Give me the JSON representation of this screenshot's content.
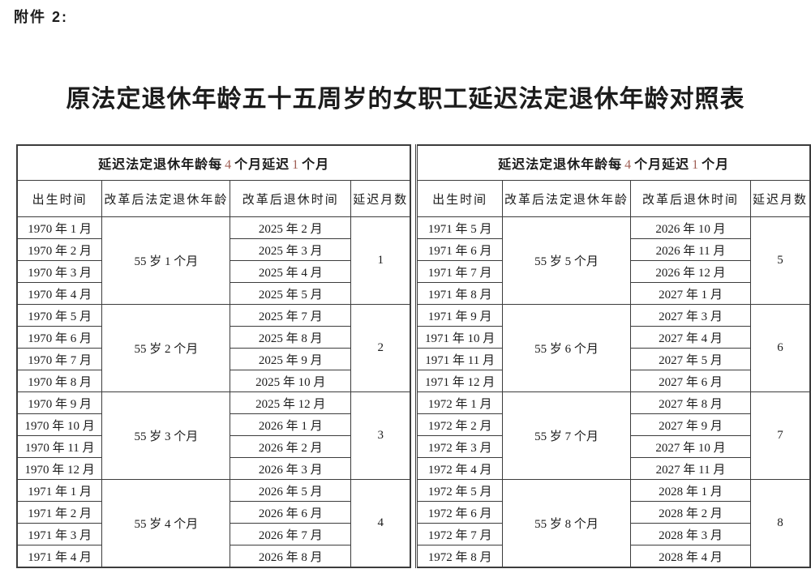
{
  "page": {
    "attachment_label": "附件 2:",
    "title": "原法定退休年龄五十五周岁的女职工延迟法定退休年龄对照表"
  },
  "colors": {
    "header_digit_color": "#a05f55",
    "border_color": "#3c3c3c",
    "text_color": "#1c1c1c",
    "background": "#ffffff"
  },
  "tables": [
    {
      "span_header": {
        "prefix": "延迟法定退休年龄每",
        "interval_months": "4",
        "mid": "个月延迟",
        "delay_months": "1",
        "suffix": "个月"
      },
      "columns": [
        "出生时间",
        "改革后法定退休年龄",
        "改革后退休时间",
        "延迟月数"
      ],
      "groups": [
        {
          "birth_months": [
            "1970 年 1 月",
            "1970 年 2 月",
            "1970 年 3 月",
            "1970 年 4 月"
          ],
          "new_retirement_age": "55 岁 1 个月",
          "retirement_months": [
            "2025 年 2 月",
            "2025 年 3 月",
            "2025 年 4 月",
            "2025 年 5 月"
          ],
          "delay_months": "1"
        },
        {
          "birth_months": [
            "1970 年 5 月",
            "1970 年 6 月",
            "1970 年 7 月",
            "1970 年 8 月"
          ],
          "new_retirement_age": "55 岁 2 个月",
          "retirement_months": [
            "2025 年 7 月",
            "2025 年 8 月",
            "2025 年 9 月",
            "2025 年 10 月"
          ],
          "delay_months": "2"
        },
        {
          "birth_months": [
            "1970 年 9 月",
            "1970 年 10 月",
            "1970 年 11 月",
            "1970 年 12 月"
          ],
          "new_retirement_age": "55 岁 3 个月",
          "retirement_months": [
            "2025 年 12 月",
            "2026 年 1 月",
            "2026 年 2 月",
            "2026 年 3 月"
          ],
          "delay_months": "3"
        },
        {
          "birth_months": [
            "1971 年 1 月",
            "1971 年 2 月",
            "1971 年 3 月",
            "1971 年 4 月"
          ],
          "new_retirement_age": "55 岁 4 个月",
          "retirement_months": [
            "2026 年 5 月",
            "2026 年 6 月",
            "2026 年 7 月",
            "2026 年 8 月"
          ],
          "delay_months": "4"
        }
      ]
    },
    {
      "span_header": {
        "prefix": "延迟法定退休年龄每",
        "interval_months": "4",
        "mid": "个月延迟",
        "delay_months": "1",
        "suffix": "个月"
      },
      "columns": [
        "出生时间",
        "改革后法定退休年龄",
        "改革后退休时间",
        "延迟月数"
      ],
      "groups": [
        {
          "birth_months": [
            "1971 年 5 月",
            "1971 年 6 月",
            "1971 年 7 月",
            "1971 年 8 月"
          ],
          "new_retirement_age": "55 岁 5 个月",
          "retirement_months": [
            "2026 年 10 月",
            "2026 年 11 月",
            "2026 年 12 月",
            "2027 年 1 月"
          ],
          "delay_months": "5"
        },
        {
          "birth_months": [
            "1971 年 9 月",
            "1971 年 10 月",
            "1971 年 11 月",
            "1971 年 12 月"
          ],
          "new_retirement_age": "55 岁 6 个月",
          "retirement_months": [
            "2027 年 3 月",
            "2027 年 4 月",
            "2027 年 5 月",
            "2027 年 6 月"
          ],
          "delay_months": "6"
        },
        {
          "birth_months": [
            "1972 年 1 月",
            "1972 年 2 月",
            "1972 年 3 月",
            "1972 年 4 月"
          ],
          "new_retirement_age": "55 岁 7 个月",
          "retirement_months": [
            "2027 年 8 月",
            "2027 年 9 月",
            "2027 年 10 月",
            "2027 年 11 月"
          ],
          "delay_months": "7"
        },
        {
          "birth_months": [
            "1972 年 5 月",
            "1972 年 6 月",
            "1972 年 7 月",
            "1972 年 8 月"
          ],
          "new_retirement_age": "55 岁 8 个月",
          "retirement_months": [
            "2028 年 1 月",
            "2028 年 2 月",
            "2028 年 3 月",
            "2028 年 4 月"
          ],
          "delay_months": "8"
        }
      ]
    }
  ]
}
